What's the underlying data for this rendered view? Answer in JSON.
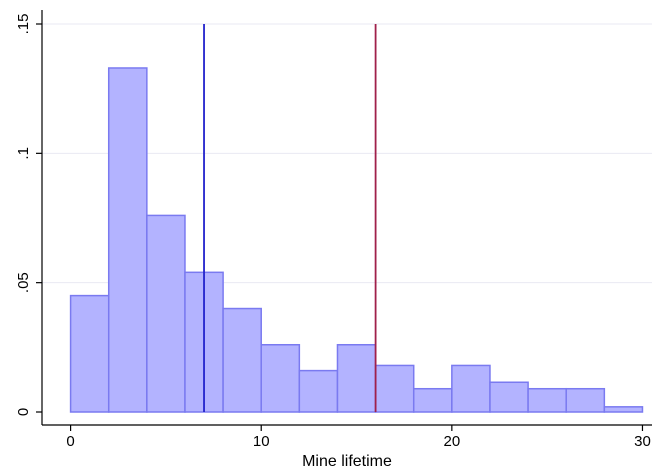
{
  "chart_data": {
    "type": "bar",
    "subtype": "histogram",
    "title": "",
    "xlabel": "Mine lifetime",
    "ylabel": "",
    "xlim": [
      -1.5,
      30.5
    ],
    "ylim": [
      0,
      0.15
    ],
    "x_ticks": [
      0,
      10,
      20,
      30
    ],
    "x_tick_labels": [
      "0",
      "10",
      "20",
      "30"
    ],
    "y_ticks": [
      0,
      0.05,
      0.1,
      0.15
    ],
    "y_tick_labels": [
      "0",
      ".05",
      ".1",
      ".15"
    ],
    "grid": true,
    "bin_width": 2,
    "bins": [
      {
        "start": 0,
        "end": 2,
        "value": 0.045
      },
      {
        "start": 2,
        "end": 4,
        "value": 0.133
      },
      {
        "start": 4,
        "end": 6,
        "value": 0.076
      },
      {
        "start": 6,
        "end": 8,
        "value": 0.054
      },
      {
        "start": 8,
        "end": 10,
        "value": 0.04
      },
      {
        "start": 10,
        "end": 12,
        "value": 0.026
      },
      {
        "start": 12,
        "end": 14,
        "value": 0.016
      },
      {
        "start": 14,
        "end": 16,
        "value": 0.026
      },
      {
        "start": 16,
        "end": 18,
        "value": 0.018
      },
      {
        "start": 18,
        "end": 20,
        "value": 0.009
      },
      {
        "start": 20,
        "end": 22,
        "value": 0.018
      },
      {
        "start": 22,
        "end": 24,
        "value": 0.0115
      },
      {
        "start": 24,
        "end": 26,
        "value": 0.009
      },
      {
        "start": 26,
        "end": 28,
        "value": 0.009
      },
      {
        "start": 28,
        "end": 30,
        "value": 0.002
      }
    ],
    "reference_lines": [
      {
        "x": 7,
        "color": "#2222cc"
      },
      {
        "x": 16,
        "color": "#a0204a"
      }
    ],
    "colors": {
      "bar_fill": "#b3b3ff",
      "bar_stroke": "#7a7af0",
      "grid": "#e9e9f3",
      "axis": "#000000"
    }
  }
}
